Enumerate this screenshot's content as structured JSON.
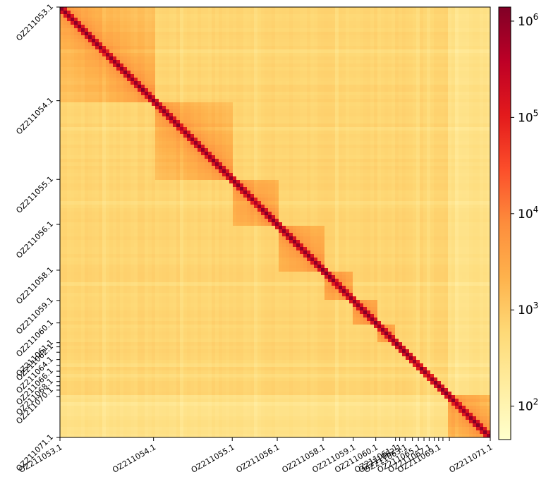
{
  "chart_data": {
    "type": "heatmap",
    "title": "",
    "xlabel": "",
    "ylabel": "",
    "colormap": "YlOrRd",
    "scale": "log",
    "color_range": [
      45,
      1400000
    ],
    "boundaries": [
      {
        "name": "OZ211053.1",
        "start": 0.0
      },
      {
        "name": "OZ211054.1",
        "start": 0.2175
      },
      {
        "name": "OZ211055.1",
        "start": 0.4004
      },
      {
        "name": "OZ211056.1",
        "start": 0.505
      },
      {
        "name": "OZ211058.1",
        "start": 0.6114
      },
      {
        "name": "OZ211059.1",
        "start": 0.6817
      },
      {
        "name": "OZ211060.1",
        "start": 0.7339
      },
      {
        "name": "OZ211061.1",
        "start": 0.7798
      },
      {
        "name": "OZ211062.1",
        "start": 0.7895
      },
      {
        "name": "OZ211063.1",
        "start": 0.802
      },
      {
        "name": "OZ211064.1",
        "start": 0.8191
      },
      {
        "name": "OZ211065.1",
        "start": 0.833
      },
      {
        "name": "OZ211066.1",
        "start": 0.846
      },
      {
        "name": "OZ211067.1",
        "start": 0.858
      },
      {
        "name": "OZ211068.1",
        "start": 0.87
      },
      {
        "name": "OZ211069.1",
        "start": 0.88
      },
      {
        "name": "OZ211070.1",
        "start": 0.89
      },
      {
        "name": "OZ211071.1",
        "start": 0.905
      }
    ],
    "axis_end_label": "OZ211071.1",
    "x_tick_labels": [
      "OZ211053.1",
      "OZ211054.1",
      "OZ211055.1",
      "OZ211056.1",
      "OZ211058.1",
      "OZ211059.1",
      "OZ211060.1",
      "OZ211062.1",
      "OZ211063.1",
      "OZ211065.1",
      "OZ211067.1",
      "OZ211069.1",
      "OZ211061.1",
      "OZ211071.1"
    ],
    "y_tick_labels": [
      "OZ211053.1",
      "OZ211054.1",
      "OZ211055.1",
      "OZ211056.1",
      "OZ211058.1",
      "OZ211059.1",
      "OZ211060.1",
      "OZ211062.1",
      "OZ211064.1",
      "OZ211066.1",
      "OZ211068.1",
      "OZ211070.1",
      "OZ211061.1",
      "OZ211071.1"
    ],
    "colorbar": {
      "orientation": "vertical",
      "ticks": [
        {
          "base": "10",
          "exp": "2",
          "value": 100
        },
        {
          "base": "10",
          "exp": "3",
          "value": 1000
        },
        {
          "base": "10",
          "exp": "4",
          "value": 10000
        },
        {
          "base": "10",
          "exp": "5",
          "value": 100000
        },
        {
          "base": "10",
          "exp": "6",
          "value": 1000000
        }
      ]
    },
    "grid": false,
    "legend": "colorbar-right"
  }
}
